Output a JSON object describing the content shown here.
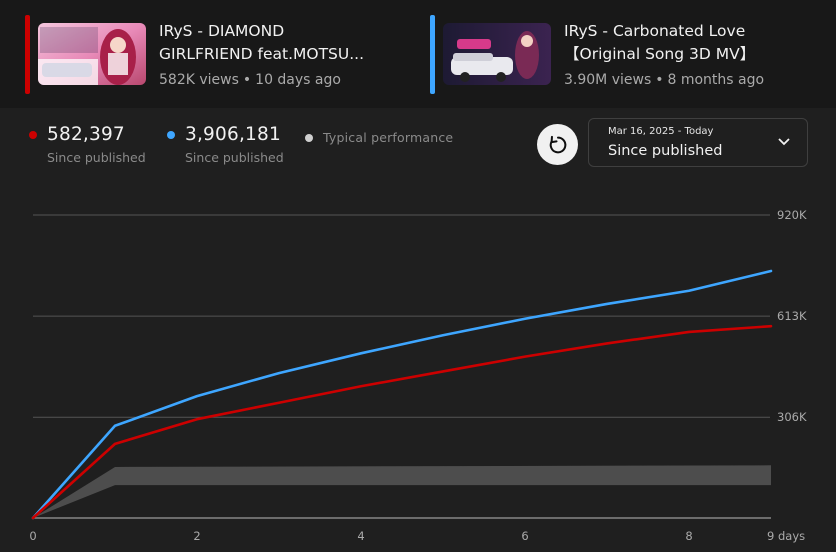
{
  "videos": [
    {
      "title_line1": "IRyS - DIAMOND",
      "title_line2": "GIRLFRIEND feat.MOTSU...",
      "views": "582K views",
      "age": "10 days ago",
      "color": "#cc0000"
    },
    {
      "title_line1": "IRyS - Carbonated Love",
      "title_line2": "【Original Song 3D MV】",
      "views": "3.90M views",
      "age": "8 months ago",
      "color": "#3ea6ff"
    }
  ],
  "meta_separator": "•",
  "stats": [
    {
      "value": "582,397",
      "label": "Since published",
      "color": "#cc0000"
    },
    {
      "value": "3,906,181",
      "label": "Since published",
      "color": "#3ea6ff"
    }
  ],
  "typical": {
    "label": "Typical performance",
    "color": "#cfcfcf"
  },
  "range": {
    "dates": "Mar 16, 2025 - Today",
    "label": "Since published"
  },
  "chart_data": {
    "type": "line",
    "xlabel": "",
    "ylabel": "",
    "x_ticks": [
      "0",
      "2",
      "4",
      "6",
      "8",
      "9 days"
    ],
    "x_tick_values": [
      0,
      2,
      4,
      6,
      8,
      9
    ],
    "y_ticks": [
      "306K",
      "613K",
      "920K"
    ],
    "y_tick_values": [
      306000,
      613000,
      920000
    ],
    "xlim": [
      0,
      9
    ],
    "ylim": [
      0,
      920000
    ],
    "grid": true,
    "series": [
      {
        "color": "#3ea6ff",
        "x": [
          0,
          1,
          2,
          3,
          4,
          5,
          6,
          7,
          8,
          9
        ],
        "values": [
          0,
          280000,
          370000,
          440000,
          500000,
          555000,
          605000,
          650000,
          690000,
          750000
        ]
      },
      {
        "color": "#cc0000",
        "x": [
          0,
          1,
          2,
          3,
          4,
          5,
          6,
          7,
          8,
          9
        ],
        "values": [
          0,
          225000,
          300000,
          350000,
          400000,
          445000,
          490000,
          530000,
          565000,
          582397
        ]
      }
    ],
    "band": {
      "color": "#505050",
      "x": [
        0,
        1,
        9
      ],
      "upper": [
        0,
        155000,
        160000
      ],
      "lower": [
        0,
        100000,
        100000
      ]
    }
  }
}
